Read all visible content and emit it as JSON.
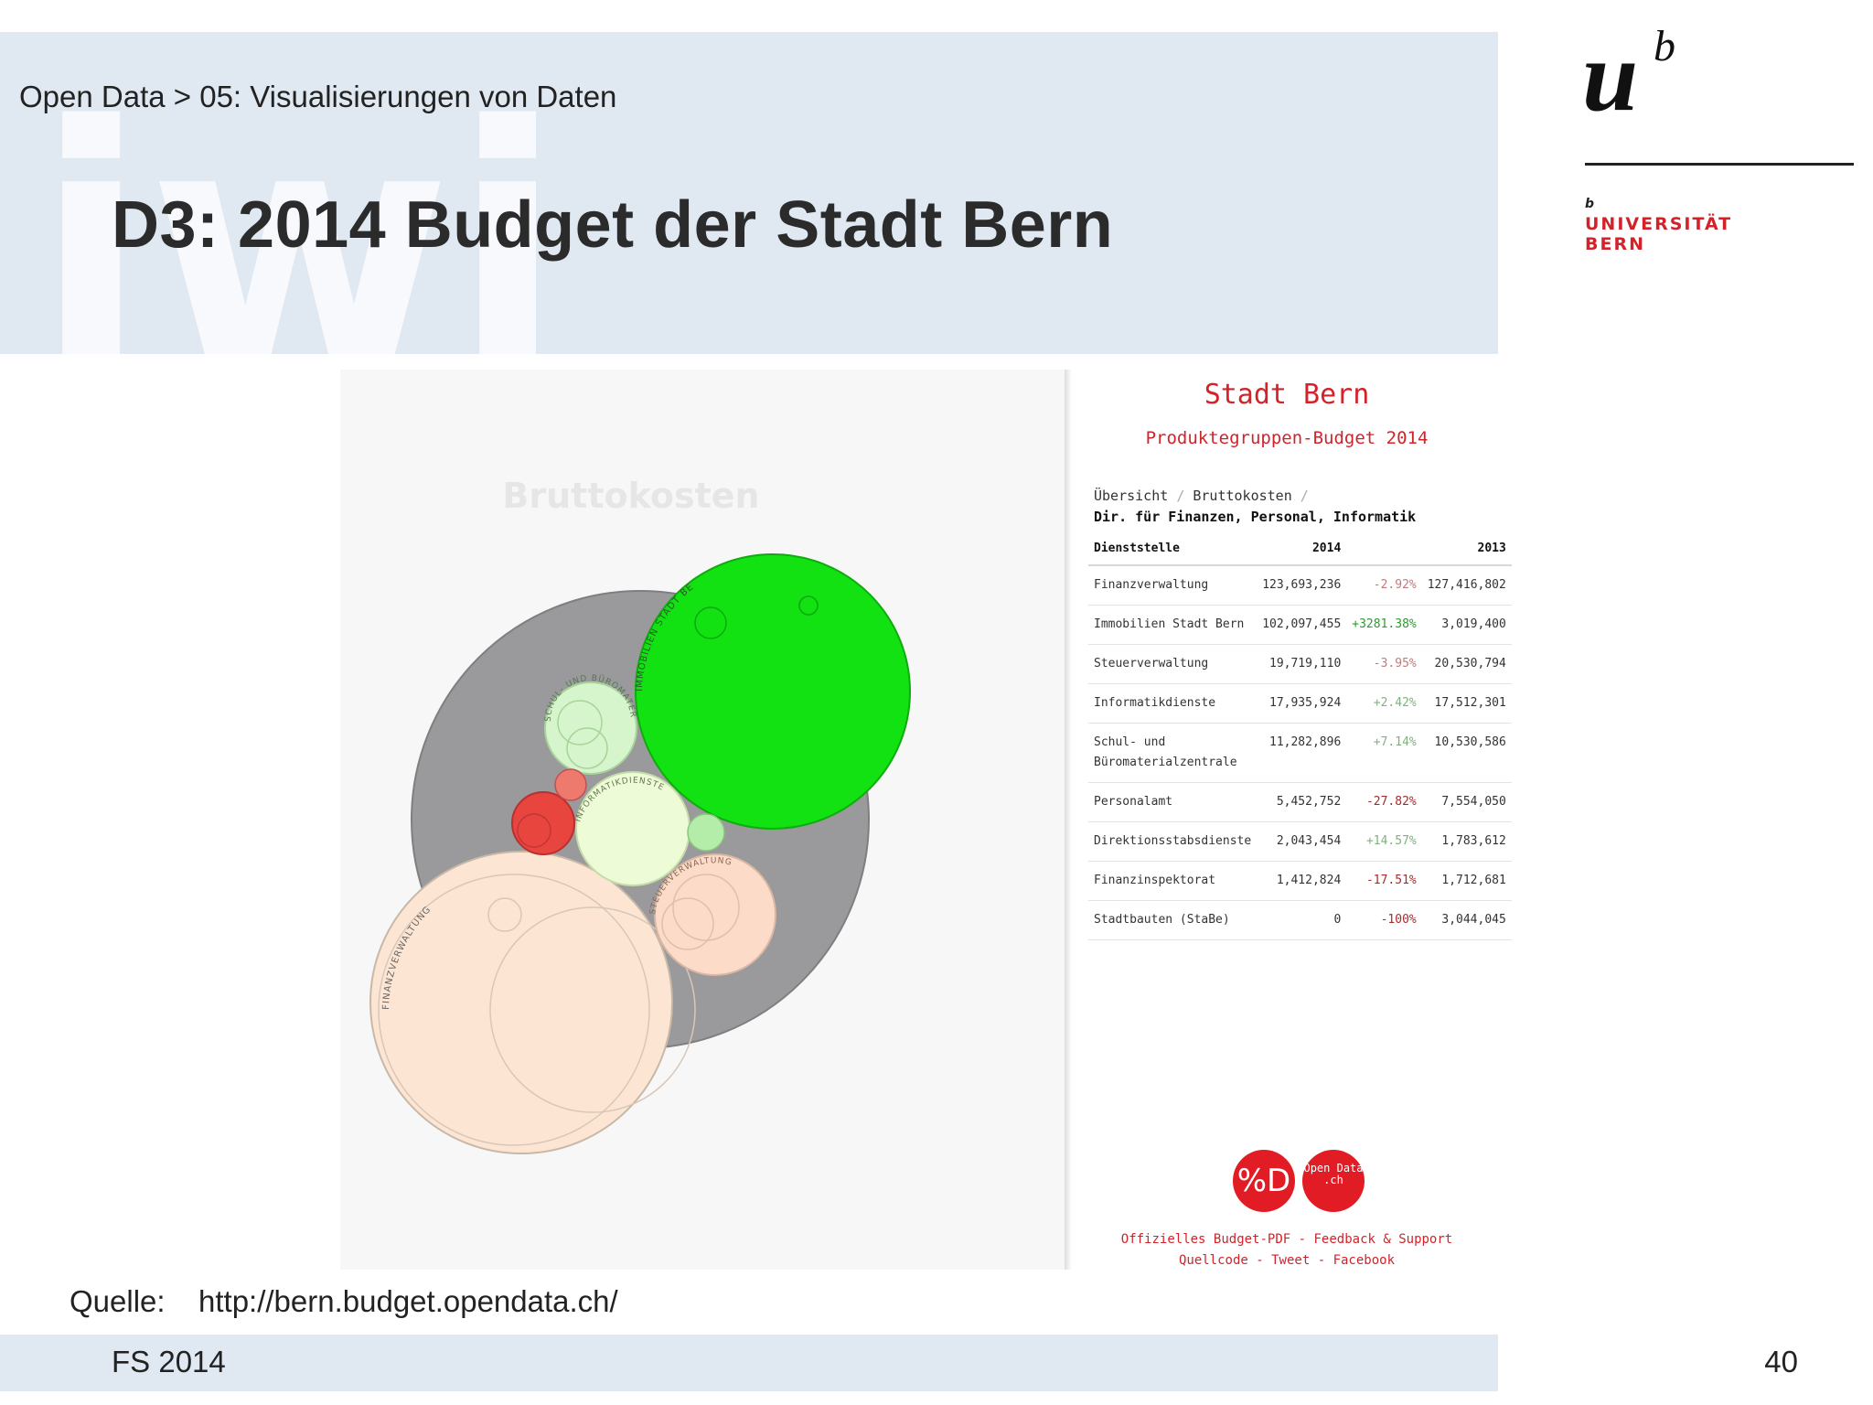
{
  "slide": {
    "breadcrumb": "Open Data > 05: Visualisierungen von Daten",
    "title": "D3: 2014 Budget der Stadt Bern",
    "university": "UNIVERSITÄT",
    "university_city": "BERN",
    "university_b": "b",
    "logo_letters": "ub",
    "watermark": "iwi",
    "source_label": "Quelle:",
    "source_url": "http://bern.budget.opendata.ch/",
    "footer": "FS 2014",
    "page_number": "40"
  },
  "viz": {
    "heading": "Bruttokosten",
    "bubble_labels": {
      "finanz": "FINANZVERWALTUNG",
      "immo": "IMMOBILIEN STADT BERN",
      "schul": "SCHUL- UND BÜROMATERIALZENTRALE",
      "info": "INFORMATIKDIENSTE",
      "steuer": "STEUERVERWALTUNG"
    },
    "colors": {
      "outer": "#9a999b",
      "finanz": "#fde5d3",
      "immo": "#12e212",
      "schul": "#d6f5cc",
      "info": "#edfbd6",
      "steuer": "#fcdcc9",
      "personal": "#e8453f"
    }
  },
  "panel": {
    "title": "Stadt Bern",
    "subtitle": "Produktegruppen-Budget 2014",
    "breadcrumb": {
      "c1": "Übersicht",
      "c2": "Bruttokosten",
      "c3": "Dir. für Finanzen, Personal, Informatik"
    },
    "table": {
      "headers": [
        "Dienststelle",
        "2014",
        "",
        "2013"
      ],
      "rows": [
        {
          "name": "Finanzverwaltung",
          "v2014": "123,693,236",
          "change": "-2.92%",
          "v2013": "127,416,802",
          "tone": "negl"
        },
        {
          "name": "Immobilien Stadt Bern",
          "v2014": "102,097,455",
          "change": "+3281.38%",
          "v2013": "3,019,400",
          "tone": "pos"
        },
        {
          "name": "Steuerverwaltung",
          "v2014": "19,719,110",
          "change": "-3.95%",
          "v2013": "20,530,794",
          "tone": "negl"
        },
        {
          "name": "Informatikdienste",
          "v2014": "17,935,924",
          "change": "+2.42%",
          "v2013": "17,512,301",
          "tone": "posl"
        },
        {
          "name": "Schul- und Büromaterialzentrale",
          "v2014": "11,282,896",
          "change": "+7.14%",
          "v2013": "10,530,586",
          "tone": "posl"
        },
        {
          "name": "Personalamt",
          "v2014": "5,452,752",
          "change": "-27.82%",
          "v2013": "7,554,050",
          "tone": "neg"
        },
        {
          "name": "Direktionsstabsdienste",
          "v2014": "2,043,454",
          "change": "+14.57%",
          "v2013": "1,783,612",
          "tone": "posl"
        },
        {
          "name": "Finanzinspektorat",
          "v2014": "1,412,824",
          "change": "-17.51%",
          "v2013": "1,712,681",
          "tone": "neg"
        },
        {
          "name": "Stadtbauten (StaBe)",
          "v2014": "0",
          "change": "-100%",
          "v2013": "3,044,045",
          "tone": "neg"
        }
      ]
    },
    "badge1": "%D",
    "badge2": "Open Data .ch",
    "links": {
      "pdf": "Offizielles Budget-PDF",
      "feedback": "Feedback & Support",
      "code": "Quellcode",
      "tweet": "Tweet",
      "facebook": "Facebook"
    }
  }
}
